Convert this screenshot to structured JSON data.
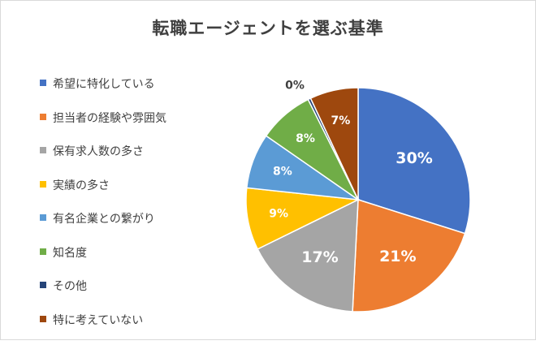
{
  "chart_data": {
    "type": "pie",
    "title": "転職エージェントを選ぶ基準",
    "legend_position": "left",
    "categories": [
      "希望に特化している",
      "担当者の経験や雰囲気",
      "保有求人数の多さ",
      "実績の多さ",
      "有名企業との繋がり",
      "知名度",
      "その他",
      "特に考えていない"
    ],
    "values": [
      30,
      21,
      17,
      9,
      8,
      8,
      0.4,
      7
    ],
    "labels": [
      "30%",
      "21%",
      "17%",
      "9%",
      "8%",
      "8%",
      "0%",
      "7%"
    ],
    "colors": [
      "#4472c4",
      "#ed7d31",
      "#a5a5a5",
      "#ffc000",
      "#5b9bd5",
      "#70ad47",
      "#264478",
      "#9e480e"
    ]
  }
}
